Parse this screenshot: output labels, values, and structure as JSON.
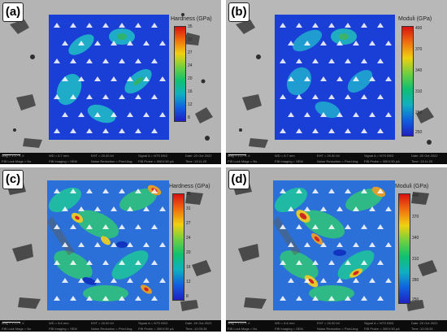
{
  "panels": [
    {
      "label": "(a)",
      "colorbar_title": "Hardness (GPa)",
      "ticks": [
        "35",
        "31",
        "27",
        "24",
        "20",
        "16",
        "12",
        "8"
      ],
      "status": {
        "mag": "Mag = 1.17 K X",
        "lock": "FIB Lock Mags = No",
        "wd": "WD = 8.7 mm",
        "imaging": "FIB Imaging = SEM",
        "eht": "EHT = 20.00 kV",
        "noise": "Noise Reduction = Pixel Avg.",
        "signal": "Signal A = NTS BSD",
        "probe": "FIB Probe = 30KV:50 pA",
        "date": "Date :20 Oct 2022",
        "time": "Time :13:11:20"
      }
    },
    {
      "label": "(b)",
      "colorbar_title": "Moduli (GPa)",
      "ticks": [
        "400",
        "370",
        "340",
        "310",
        "280",
        "250"
      ],
      "status": {
        "mag": "Mag = 1.17 K X",
        "lock": "FIB Lock Mags = No",
        "wd": "WD = 8.7 mm",
        "imaging": "FIB Imaging = SEM",
        "eht": "EHT = 20.00 kV",
        "noise": "Noise Reduction = Pixel Avg.",
        "signal": "Signal A = NTS BSD",
        "probe": "FIB Probe = 30KV:50 pA",
        "date": "Date :20 Oct 2022",
        "time": "Time :13:11:20"
      }
    },
    {
      "label": "(c)",
      "colorbar_title": "Hardness (GPa)",
      "ticks": [
        "35",
        "31",
        "27",
        "24",
        "20",
        "16",
        "12",
        "8"
      ],
      "status": {
        "mag": "Mag = 1.12 K X",
        "lock": "FIB Lock Mags = No",
        "wd": "WD = 8.6 mm",
        "imaging": "FIB Imaging = SEM",
        "eht": "EHT = 20.00 kV",
        "noise": "Noise Reduction = Pixel Avg.",
        "signal": "Signal A = NTS BSD",
        "probe": "FIB Probe = 30KV:50 pA",
        "date": "Date :20 Oct 2022",
        "time": "Time :12:09:39"
      }
    },
    {
      "label": "(d)",
      "colorbar_title": "Moduli (GPa)",
      "ticks": [
        "400",
        "370",
        "340",
        "310",
        "280",
        "250"
      ],
      "status": {
        "mag": "Mag = 1.12 K X",
        "lock": "FIB Lock Mags = No",
        "wd": "WD = 8.6 mm",
        "imaging": "FIB Imaging = SEM",
        "eht": "EHT = 20.00 kV",
        "noise": "Noise Reduction = Pixel Avg.",
        "signal": "Signal A = NTS BSD",
        "probe": "FIB Probe = 30KV:50 pA",
        "date": "Date :20 Oct 2022",
        "time": "Time :12:09:39"
      }
    }
  ],
  "colors": {
    "sem_background": "#b4b4b4",
    "sem_dark_grain": "#4a4a4a",
    "map_low": "#1030d8",
    "map_mid": "#20c8a0",
    "map_high": "#e02010",
    "colorbar_gradient": [
      "#d81010",
      "#f07010",
      "#f0d010",
      "#70d040",
      "#10c070",
      "#10b0c0",
      "#1060e0",
      "#2020c0"
    ]
  },
  "icons": [
    "indent-mark-icon"
  ]
}
